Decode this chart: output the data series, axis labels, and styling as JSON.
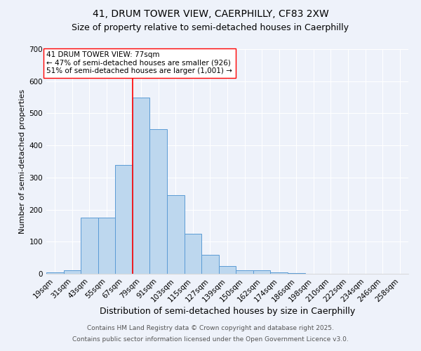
{
  "title1": "41, DRUM TOWER VIEW, CAERPHILLY, CF83 2XW",
  "title2": "Size of property relative to semi-detached houses in Caerphilly",
  "xlabel": "Distribution of semi-detached houses by size in Caerphilly",
  "ylabel": "Number of semi-detached properties",
  "bin_labels": [
    "19sqm",
    "31sqm",
    "43sqm",
    "55sqm",
    "67sqm",
    "79sqm",
    "91sqm",
    "103sqm",
    "115sqm",
    "127sqm",
    "139sqm",
    "150sqm",
    "162sqm",
    "174sqm",
    "186sqm",
    "198sqm",
    "210sqm",
    "222sqm",
    "234sqm",
    "246sqm",
    "258sqm"
  ],
  "bar_heights": [
    5,
    12,
    175,
    175,
    340,
    550,
    450,
    245,
    125,
    60,
    25,
    10,
    10,
    5,
    2,
    0,
    0,
    0,
    0,
    0,
    0
  ],
  "bar_color": "#bdd7ee",
  "bar_edge_color": "#5b9bd5",
  "vline_x": 4.5,
  "vline_color": "red",
  "annotation_title": "41 DRUM TOWER VIEW: 77sqm",
  "annotation_line1": "← 47% of semi-detached houses are smaller (926)",
  "annotation_line2": "51% of semi-detached houses are larger (1,001) →",
  "annotation_box_color": "white",
  "annotation_box_edge_color": "red",
  "ylim": [
    0,
    700
  ],
  "yticks": [
    0,
    100,
    200,
    300,
    400,
    500,
    600,
    700
  ],
  "footnote1": "Contains HM Land Registry data © Crown copyright and database right 2025.",
  "footnote2": "Contains public sector information licensed under the Open Government Licence v3.0.",
  "bg_color": "#eef2fa",
  "grid_color": "white",
  "title1_fontsize": 10,
  "title2_fontsize": 9,
  "xlabel_fontsize": 9,
  "ylabel_fontsize": 8,
  "tick_fontsize": 7.5,
  "annotation_fontsize": 7.5,
  "footnote_fontsize": 6.5
}
